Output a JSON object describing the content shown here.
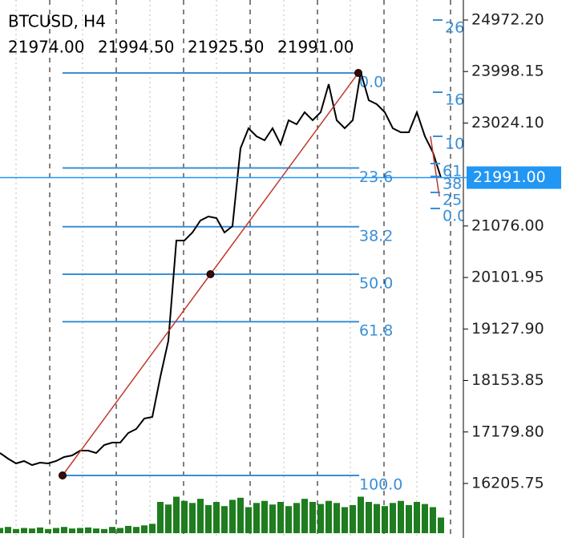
{
  "chart_data": {
    "type": "line",
    "title": "BTCUSD, H4",
    "ohlc": [
      "21974.00",
      "21994.50",
      "21925.50",
      "21991.00"
    ],
    "series": [
      {
        "name": "BTCUSD",
        "color": "#000000",
        "values": [
          16782,
          16676,
          16585,
          16630,
          16554,
          16600,
          16585,
          16630,
          16706,
          16736,
          16827,
          16827,
          16782,
          16933,
          16979,
          16979,
          17161,
          17237,
          17434,
          17464,
          18223,
          18905,
          20801,
          20801,
          20953,
          21180,
          21256,
          21226,
          20953,
          21074,
          22545,
          22924,
          22773,
          22697,
          22924,
          22621,
          23076,
          23000,
          23228,
          23076,
          23228,
          23759,
          23076,
          22924,
          23076,
          23986,
          23455,
          23379,
          23228,
          22924,
          22849,
          22849,
          23228,
          22773,
          22469,
          21991
        ]
      }
    ],
    "volume": {
      "color": "#1e7d1e",
      "ylim": [
        0,
        100
      ],
      "values": [
        10,
        12,
        8,
        10,
        9,
        11,
        8,
        10,
        12,
        9,
        10,
        11,
        9,
        8,
        12,
        10,
        14,
        12,
        15,
        18,
        60,
        55,
        70,
        62,
        58,
        66,
        54,
        60,
        52,
        64,
        68,
        50,
        58,
        62,
        55,
        60,
        52,
        58,
        66,
        60,
        56,
        62,
        58,
        50,
        54,
        70,
        60,
        56,
        52,
        58,
        62,
        54,
        60,
        56,
        50,
        30
      ]
    },
    "ylim": [
      15174,
      25351
    ],
    "yticks": [
      {
        "value": 24972.2,
        "label": "24972.20"
      },
      23998.15,
      {
        "value": 23024.1,
        "label": "23024.10"
      },
      {
        "value": 21076,
        "label": "21076.00"
      },
      20101.95,
      {
        "value": 19127.9,
        "label": "19127.90"
      },
      18153.85,
      {
        "value": 17179.8,
        "label": "17179.80"
      },
      16205.75
    ],
    "last_price": {
      "value": 21991,
      "label": "21991.00",
      "color": "#2196f3"
    },
    "fibonacci": {
      "high": 23971,
      "low": 16357,
      "color": "#3a8fd6",
      "line_color": "#c0392b",
      "levels": [
        {
          "value": 0,
          "label": "0.0"
        },
        23.6,
        38.2,
        {
          "value": 50,
          "label": "50.0"
        },
        61.8,
        {
          "value": 100,
          "label": "100.0"
        }
      ]
    },
    "secondary_fib_labels": [
      "26",
      "16",
      "10",
      "61",
      "38",
      "25",
      "0.0"
    ]
  }
}
